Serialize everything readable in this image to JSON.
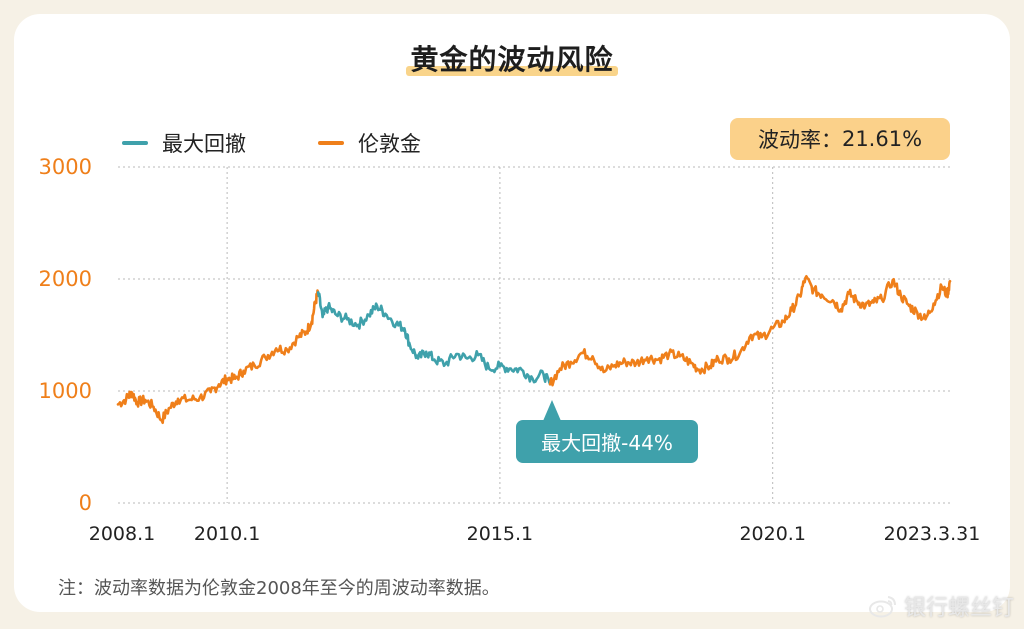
{
  "title": "黄金的波动风险",
  "legend": {
    "drawdown_label": "最大回撤",
    "gold_label": "伦敦金"
  },
  "volatility_badge": {
    "label": "波动率：",
    "value": "21.61%"
  },
  "drawdown_callout": "最大回撤-44%",
  "footnote": "注：波动率数据为伦敦金2008年至今的周波动率数据。",
  "watermark": "银行螺丝钉",
  "colors": {
    "gold": "#ef7f1a",
    "drawdown": "#3fa1ab",
    "axis_tick": "#ef7f1a",
    "badge": "#fbd18a",
    "title_highlight": "#f9d48a"
  },
  "chart_data": {
    "type": "line",
    "title": "黄金的波动风险",
    "xlabel": "",
    "ylabel": "",
    "ylim": [
      0,
      3000
    ],
    "xlim": [
      2008.0,
      2023.25
    ],
    "y_ticks": [
      0,
      1000,
      2000,
      3000
    ],
    "x_ticks": [
      {
        "x": 2008.0,
        "label": "2008.1"
      },
      {
        "x": 2010.0,
        "label": "2010.1"
      },
      {
        "x": 2015.0,
        "label": "2015.1"
      },
      {
        "x": 2020.0,
        "label": "2020.1"
      },
      {
        "x": 2023.25,
        "label": "2023.3.31"
      }
    ],
    "grid": {
      "horizontal": true,
      "vertical": true,
      "style": "dotted"
    },
    "legend_position": "top-left",
    "series": [
      {
        "name": "伦敦金",
        "color": "#ef7f1a",
        "points": [
          [
            2008.0,
            880
          ],
          [
            2008.15,
            930
          ],
          [
            2008.25,
            990
          ],
          [
            2008.35,
            900
          ],
          [
            2008.5,
            920
          ],
          [
            2008.65,
            860
          ],
          [
            2008.8,
            740
          ],
          [
            2008.95,
            850
          ],
          [
            2009.1,
            930
          ],
          [
            2009.3,
            920
          ],
          [
            2009.5,
            940
          ],
          [
            2009.7,
            990
          ],
          [
            2009.85,
            1060
          ],
          [
            2010.0,
            1110
          ],
          [
            2010.15,
            1110
          ],
          [
            2010.3,
            1180
          ],
          [
            2010.5,
            1230
          ],
          [
            2010.7,
            1300
          ],
          [
            2010.9,
            1380
          ],
          [
            2011.1,
            1370
          ],
          [
            2011.3,
            1480
          ],
          [
            2011.45,
            1530
          ],
          [
            2011.55,
            1620
          ],
          [
            2011.62,
            1800
          ],
          [
            2011.67,
            1880
          ]
        ]
      },
      {
        "name": "最大回撤",
        "color": "#3fa1ab",
        "points": [
          [
            2011.67,
            1880
          ],
          [
            2011.75,
            1660
          ],
          [
            2011.85,
            1750
          ],
          [
            2012.0,
            1680
          ],
          [
            2012.2,
            1640
          ],
          [
            2012.4,
            1590
          ],
          [
            2012.6,
            1680
          ],
          [
            2012.75,
            1760
          ],
          [
            2012.9,
            1690
          ],
          [
            2013.1,
            1600
          ],
          [
            2013.25,
            1560
          ],
          [
            2013.35,
            1410
          ],
          [
            2013.5,
            1290
          ],
          [
            2013.65,
            1350
          ],
          [
            2013.8,
            1280
          ],
          [
            2014.0,
            1240
          ],
          [
            2014.2,
            1330
          ],
          [
            2014.4,
            1290
          ],
          [
            2014.6,
            1320
          ],
          [
            2014.8,
            1200
          ],
          [
            2015.0,
            1220
          ],
          [
            2015.2,
            1200
          ],
          [
            2015.4,
            1190
          ],
          [
            2015.6,
            1110
          ],
          [
            2015.8,
            1150
          ],
          [
            2015.92,
            1060
          ]
        ]
      },
      {
        "name": "伦敦金",
        "color": "#ef7f1a",
        "points": [
          [
            2015.92,
            1060
          ],
          [
            2016.1,
            1200
          ],
          [
            2016.3,
            1260
          ],
          [
            2016.5,
            1340
          ],
          [
            2016.7,
            1310
          ],
          [
            2016.9,
            1170
          ],
          [
            2017.1,
            1230
          ],
          [
            2017.3,
            1260
          ],
          [
            2017.5,
            1250
          ],
          [
            2017.7,
            1300
          ],
          [
            2017.9,
            1280
          ],
          [
            2018.1,
            1330
          ],
          [
            2018.3,
            1310
          ],
          [
            2018.5,
            1250
          ],
          [
            2018.65,
            1190
          ],
          [
            2018.85,
            1220
          ],
          [
            2019.0,
            1290
          ],
          [
            2019.2,
            1290
          ],
          [
            2019.4,
            1340
          ],
          [
            2019.6,
            1500
          ],
          [
            2019.8,
            1480
          ],
          [
            2020.0,
            1560
          ],
          [
            2020.2,
            1620
          ],
          [
            2020.35,
            1720
          ],
          [
            2020.5,
            1850
          ],
          [
            2020.6,
            2010
          ],
          [
            2020.75,
            1900
          ],
          [
            2020.9,
            1860
          ],
          [
            2021.1,
            1810
          ],
          [
            2021.25,
            1730
          ],
          [
            2021.4,
            1870
          ],
          [
            2021.55,
            1800
          ],
          [
            2021.7,
            1760
          ],
          [
            2021.85,
            1790
          ],
          [
            2022.0,
            1820
          ],
          [
            2022.2,
            1990
          ],
          [
            2022.35,
            1850
          ],
          [
            2022.5,
            1760
          ],
          [
            2022.65,
            1700
          ],
          [
            2022.8,
            1640
          ],
          [
            2022.95,
            1780
          ],
          [
            2023.1,
            1930
          ],
          [
            2023.2,
            1860
          ],
          [
            2023.25,
            1980
          ]
        ]
      }
    ],
    "annotations": [
      {
        "text": "最大回撤-44%",
        "x": 2015.92,
        "y": 1060
      },
      {
        "text": "波动率：21.61%"
      }
    ]
  }
}
